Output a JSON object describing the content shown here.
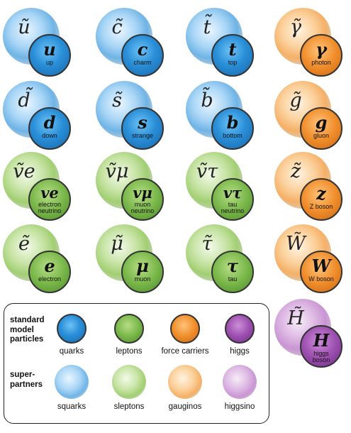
{
  "colors": {
    "quarks": "#2a8fd8",
    "leptons": "#7ab84b",
    "force_carriers": "#f08e2c",
    "higgs": "#9d4fb0"
  },
  "particles": [
    {
      "id": "up",
      "group": "blue",
      "partner_symbol": "ũ",
      "symbol": "u",
      "name": "up"
    },
    {
      "id": "charm",
      "group": "blue",
      "partner_symbol": "c̃",
      "symbol": "c",
      "name": "charm"
    },
    {
      "id": "top",
      "group": "blue",
      "partner_symbol": "t̃",
      "symbol": "t",
      "name": "top"
    },
    {
      "id": "photon",
      "group": "orange",
      "partner_symbol": "γ̃",
      "symbol": "γ",
      "name": "photon"
    },
    {
      "id": "down",
      "group": "blue",
      "partner_symbol": "d̃",
      "symbol": "d",
      "name": "down"
    },
    {
      "id": "strange",
      "group": "blue",
      "partner_symbol": "s̃",
      "symbol": "s",
      "name": "strange"
    },
    {
      "id": "bottom",
      "group": "blue",
      "partner_symbol": "b̃",
      "symbol": "b",
      "name": "bottom"
    },
    {
      "id": "gluon",
      "group": "orange",
      "partner_symbol": "g̃",
      "symbol": "g",
      "name": "gluon"
    },
    {
      "id": "electron-neutrino",
      "group": "green",
      "partner_symbol": "ṽe",
      "symbol": "ve",
      "name": "electron\nneutrino"
    },
    {
      "id": "muon-neutrino",
      "group": "green",
      "partner_symbol": "ṽμ",
      "symbol": "vμ",
      "name": "muon\nneutrino"
    },
    {
      "id": "tau-neutrino",
      "group": "green",
      "partner_symbol": "ṽτ",
      "symbol": "vτ",
      "name": "tau\nneutrino"
    },
    {
      "id": "z-boson",
      "group": "orange",
      "partner_symbol": "z̃",
      "symbol": "z",
      "name": "Z boson"
    },
    {
      "id": "electron",
      "group": "green",
      "partner_symbol": "ẽ",
      "symbol": "e",
      "name": "electron"
    },
    {
      "id": "muon",
      "group": "green",
      "partner_symbol": "μ̃",
      "symbol": "μ",
      "name": "muon"
    },
    {
      "id": "tau",
      "group": "green",
      "partner_symbol": "τ̃",
      "symbol": "τ",
      "name": "tau"
    },
    {
      "id": "w-boson",
      "group": "orange",
      "partner_symbol": "W̃",
      "symbol": "W",
      "name": "W boson"
    },
    {
      "id": "higgs-boson",
      "group": "purple",
      "partner_symbol": "H̃",
      "symbol": "H",
      "name": "higgs\nboson"
    }
  ],
  "legend": {
    "standard_heading": "standard\nmodel\nparticles",
    "super_heading": "super-\npartners",
    "standard_items": [
      {
        "color": "blue",
        "label": "quarks"
      },
      {
        "color": "green",
        "label": "leptons"
      },
      {
        "color": "orange",
        "label": "force carriers"
      },
      {
        "color": "purple",
        "label": "higgs"
      }
    ],
    "super_items": [
      {
        "color": "blue",
        "label": "squarks"
      },
      {
        "color": "green",
        "label": "sleptons"
      },
      {
        "color": "orange",
        "label": "gauginos"
      },
      {
        "color": "purple",
        "label": "higgsino"
      }
    ]
  }
}
